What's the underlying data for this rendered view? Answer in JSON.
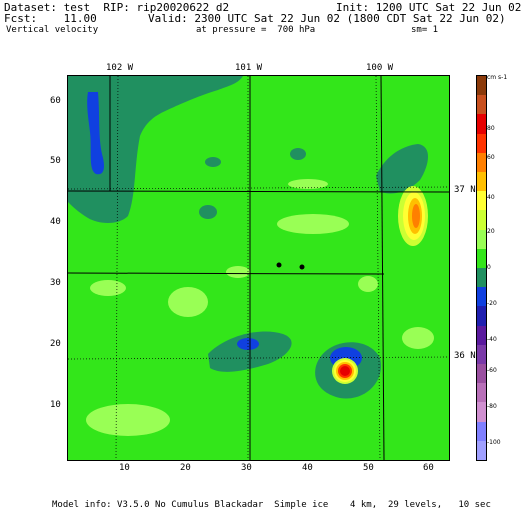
{
  "header": {
    "dataset_line": "Dataset: test  RIP: rip20020622 d2",
    "init_line": "Init: 1200 UTC Sat 22 Jun 02",
    "fcst_line": "Fcst:    11.00",
    "valid_line": "Valid: 2300 UTC Sat 22 Jun 02 (1800 CDT Sat 22 Jun 02)",
    "field_name": "Vertical velocity",
    "pressure_line": "at pressure =  700 hPa",
    "sm_line": "sm= 1"
  },
  "footer": {
    "model_info": "Model info: V3.5.0 No Cumulus Blackadar  Simple ice    4 km,  29 levels,   10 sec"
  },
  "map": {
    "longitude_labels": [
      "102 W",
      "101 W",
      "100 W"
    ],
    "latitude_labels": [
      "37 N",
      "36 N"
    ],
    "x_ticks": [
      "10",
      "20",
      "30",
      "40",
      "50",
      "60"
    ],
    "y_ticks": [
      "60",
      "50",
      "40",
      "30",
      "20",
      "10"
    ]
  },
  "colorbar": {
    "unit": "cm s-1",
    "labels": [
      "80",
      "60",
      "40",
      "20",
      "0",
      "-20",
      "-40",
      "-60",
      "-80",
      "-100"
    ],
    "colors": [
      "#8b3a0a",
      "#c8501e",
      "#e60000",
      "#ff3300",
      "#ff7f00",
      "#ffbf00",
      "#ffff33",
      "#ccff33",
      "#99ff55",
      "#33e61a",
      "#209060",
      "#1040e0",
      "#2020b0",
      "#5a1a9e",
      "#7a3aa8",
      "#9a50a0",
      "#b870b8",
      "#d090d0",
      "#8080ff",
      "#a0a0ff"
    ]
  }
}
